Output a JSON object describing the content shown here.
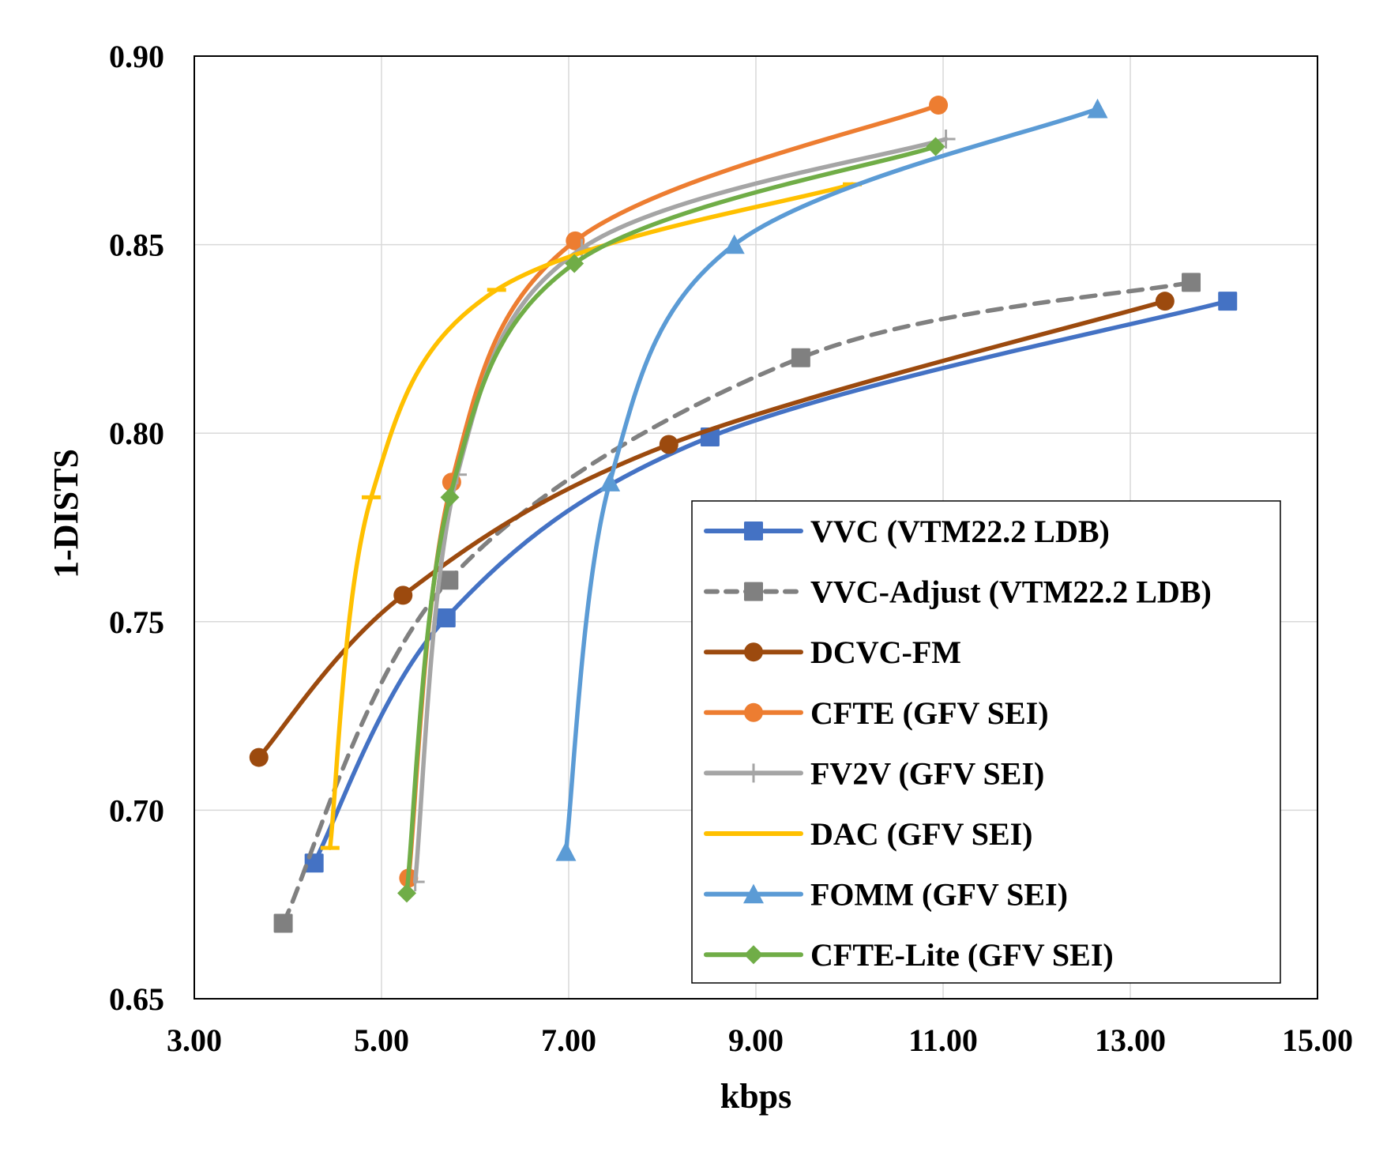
{
  "chart_data": {
    "type": "line",
    "title": "",
    "xlabel": "kbps",
    "ylabel": "1-DISTS",
    "xlim": [
      3.0,
      15.0
    ],
    "ylim": [
      0.65,
      0.9
    ],
    "x_ticks": [
      "3.00",
      "5.00",
      "7.00",
      "9.00",
      "11.00",
      "13.00",
      "15.00"
    ],
    "y_ticks": [
      "0.65",
      "0.70",
      "0.75",
      "0.80",
      "0.85",
      "0.90"
    ],
    "grid": true,
    "legend_position": "inside-lower-right",
    "smooth": true,
    "series": [
      {
        "name": "VVC (VTM22.2 LDB)",
        "color": "#4472C4",
        "marker": "square",
        "dash": false,
        "x": [
          4.28,
          5.69,
          8.51,
          14.04
        ],
        "y": [
          0.686,
          0.751,
          0.799,
          0.835
        ]
      },
      {
        "name": "VVC-Adjust (VTM22.2 LDB)",
        "color": "#808080",
        "marker": "square",
        "dash": true,
        "x": [
          3.95,
          5.72,
          9.48,
          13.65
        ],
        "y": [
          0.67,
          0.761,
          0.82,
          0.84
        ]
      },
      {
        "name": "DCVC-FM",
        "color": "#9C4A0E",
        "marker": "circle",
        "dash": false,
        "x": [
          3.69,
          5.23,
          8.07,
          13.37
        ],
        "y": [
          0.714,
          0.757,
          0.797,
          0.835
        ]
      },
      {
        "name": "CFTE (GFV SEI)",
        "color": "#ED7D31",
        "marker": "circle",
        "dash": false,
        "x": [
          5.29,
          5.75,
          7.07,
          10.95
        ],
        "y": [
          0.682,
          0.787,
          0.851,
          0.887
        ]
      },
      {
        "name": "FV2V (GFV SEI)",
        "color": "#A5A5A5",
        "marker": "plus",
        "dash": false,
        "x": [
          5.36,
          5.81,
          7.14,
          11.03
        ],
        "y": [
          0.681,
          0.789,
          0.849,
          0.878
        ]
      },
      {
        "name": "DAC (GFV SEI)",
        "color": "#FFC000",
        "marker": "dash",
        "dash": false,
        "x": [
          4.45,
          4.89,
          6.23,
          10.03
        ],
        "y": [
          0.69,
          0.783,
          0.838,
          0.866
        ]
      },
      {
        "name": "FOMM (GFV SEI)",
        "color": "#5B9BD5",
        "marker": "triangle",
        "dash": false,
        "x": [
          6.97,
          7.44,
          8.77,
          12.65
        ],
        "y": [
          0.689,
          0.787,
          0.85,
          0.886
        ]
      },
      {
        "name": "CFTE-Lite (GFV SEI)",
        "color": "#70AD47",
        "marker": "diamond",
        "dash": false,
        "x": [
          5.27,
          5.73,
          7.06,
          10.92
        ],
        "y": [
          0.678,
          0.783,
          0.845,
          0.876
        ]
      }
    ]
  },
  "colors": {
    "gridline": "#D9D9D9",
    "axis": "#000000",
    "background": "#FFFFFF"
  }
}
